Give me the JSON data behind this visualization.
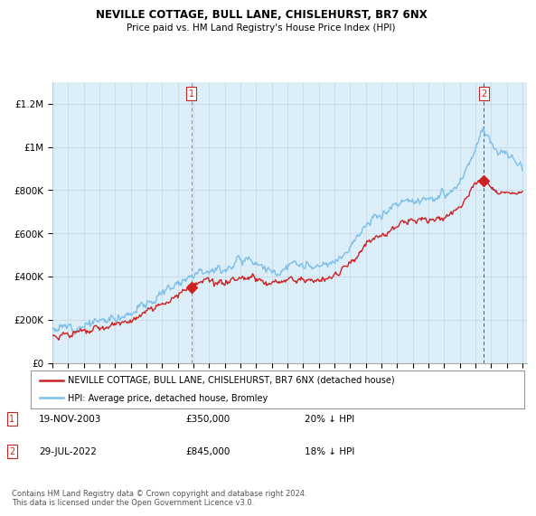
{
  "title": "NEVILLE COTTAGE, BULL LANE, CHISLEHURST, BR7 6NX",
  "subtitle": "Price paid vs. HM Land Registry's House Price Index (HPI)",
  "ylim": [
    0,
    1300000
  ],
  "yticks": [
    0,
    200000,
    400000,
    600000,
    800000,
    1000000,
    1200000
  ],
  "ytick_labels": [
    "£0",
    "£200K",
    "£400K",
    "£600K",
    "£800K",
    "£1M",
    "£1.2M"
  ],
  "hpi_color": "#7bbfea",
  "hpi_fill": "#dceef8",
  "price_color": "#cc2222",
  "sale1_date": "19-NOV-2003",
  "sale1_price": 350000,
  "sale1_pct": "20% ↓ HPI",
  "sale2_date": "29-JUL-2022",
  "sale2_price": 845000,
  "sale2_pct": "18% ↓ HPI",
  "legend_line1": "NEVILLE COTTAGE, BULL LANE, CHISLEHURST, BR7 6NX (detached house)",
  "legend_line2": "HPI: Average price, detached house, Bromley",
  "footer": "Contains HM Land Registry data © Crown copyright and database right 2024.\nThis data is licensed under the Open Government Licence v3.0.",
  "background_color": "#ffffff",
  "grid_color": "#c8d8e8",
  "chart_bg": "#dceef8",
  "hpi_base_points": [
    [
      1995.0,
      160000
    ],
    [
      1995.5,
      162000
    ],
    [
      1996.0,
      168000
    ],
    [
      1996.5,
      172000
    ],
    [
      1997.0,
      178000
    ],
    [
      1997.5,
      185000
    ],
    [
      1998.0,
      192000
    ],
    [
      1998.5,
      198000
    ],
    [
      1999.0,
      210000
    ],
    [
      1999.5,
      222000
    ],
    [
      2000.0,
      238000
    ],
    [
      2000.5,
      255000
    ],
    [
      2001.0,
      272000
    ],
    [
      2001.5,
      295000
    ],
    [
      2002.0,
      322000
    ],
    [
      2002.5,
      352000
    ],
    [
      2003.0,
      375000
    ],
    [
      2003.5,
      395000
    ],
    [
      2004.0,
      415000
    ],
    [
      2004.5,
      435000
    ],
    [
      2005.0,
      435000
    ],
    [
      2005.5,
      428000
    ],
    [
      2006.0,
      438000
    ],
    [
      2006.5,
      455000
    ],
    [
      2007.0,
      478000
    ],
    [
      2007.5,
      490000
    ],
    [
      2008.0,
      472000
    ],
    [
      2008.5,
      445000
    ],
    [
      2009.0,
      415000
    ],
    [
      2009.5,
      420000
    ],
    [
      2010.0,
      445000
    ],
    [
      2010.5,
      452000
    ],
    [
      2011.0,
      448000
    ],
    [
      2011.5,
      440000
    ],
    [
      2012.0,
      438000
    ],
    [
      2012.5,
      445000
    ],
    [
      2013.0,
      465000
    ],
    [
      2013.5,
      498000
    ],
    [
      2014.0,
      548000
    ],
    [
      2014.5,
      590000
    ],
    [
      2015.0,
      630000
    ],
    [
      2015.5,
      660000
    ],
    [
      2016.0,
      690000
    ],
    [
      2016.5,
      715000
    ],
    [
      2017.0,
      735000
    ],
    [
      2017.5,
      748000
    ],
    [
      2018.0,
      755000
    ],
    [
      2018.5,
      758000
    ],
    [
      2019.0,
      760000
    ],
    [
      2019.5,
      762000
    ],
    [
      2020.0,
      768000
    ],
    [
      2020.5,
      790000
    ],
    [
      2021.0,
      835000
    ],
    [
      2021.5,
      900000
    ],
    [
      2022.0,
      980000
    ],
    [
      2022.3,
      1050000
    ],
    [
      2022.5,
      1090000
    ],
    [
      2022.7,
      1080000
    ],
    [
      2023.0,
      1020000
    ],
    [
      2023.5,
      980000
    ],
    [
      2024.0,
      960000
    ],
    [
      2024.5,
      940000
    ],
    [
      2025.0,
      920000
    ]
  ],
  "price_base_points": [
    [
      1995.0,
      128000
    ],
    [
      1995.5,
      130000
    ],
    [
      1996.0,
      135000
    ],
    [
      1996.5,
      138000
    ],
    [
      1997.0,
      143000
    ],
    [
      1997.5,
      150000
    ],
    [
      1998.0,
      158000
    ],
    [
      1998.5,
      165000
    ],
    [
      1999.0,
      175000
    ],
    [
      1999.5,
      185000
    ],
    [
      2000.0,
      198000
    ],
    [
      2000.5,
      215000
    ],
    [
      2001.0,
      228000
    ],
    [
      2001.5,
      248000
    ],
    [
      2002.0,
      272000
    ],
    [
      2002.5,
      300000
    ],
    [
      2003.0,
      318000
    ],
    [
      2003.5,
      335000
    ],
    [
      2003.83,
      350000
    ],
    [
      2004.0,
      355000
    ],
    [
      2004.3,
      360000
    ],
    [
      2004.5,
      368000
    ],
    [
      2004.7,
      375000
    ],
    [
      2005.0,
      372000
    ],
    [
      2005.5,
      365000
    ],
    [
      2006.0,
      368000
    ],
    [
      2006.5,
      378000
    ],
    [
      2007.0,
      390000
    ],
    [
      2007.5,
      398000
    ],
    [
      2008.0,
      388000
    ],
    [
      2008.5,
      375000
    ],
    [
      2009.0,
      360000
    ],
    [
      2009.5,
      370000
    ],
    [
      2010.0,
      382000
    ],
    [
      2010.5,
      390000
    ],
    [
      2011.0,
      388000
    ],
    [
      2011.5,
      382000
    ],
    [
      2012.0,
      380000
    ],
    [
      2012.5,
      390000
    ],
    [
      2013.0,
      408000
    ],
    [
      2013.5,
      432000
    ],
    [
      2014.0,
      470000
    ],
    [
      2014.5,
      505000
    ],
    [
      2015.0,
      542000
    ],
    [
      2015.5,
      572000
    ],
    [
      2016.0,
      595000
    ],
    [
      2016.5,
      618000
    ],
    [
      2017.0,
      635000
    ],
    [
      2017.5,
      648000
    ],
    [
      2018.0,
      655000
    ],
    [
      2018.5,
      658000
    ],
    [
      2019.0,
      660000
    ],
    [
      2019.5,
      662000
    ],
    [
      2020.0,
      668000
    ],
    [
      2020.5,
      688000
    ],
    [
      2021.0,
      725000
    ],
    [
      2021.5,
      780000
    ],
    [
      2022.0,
      830000
    ],
    [
      2022.5,
      845000
    ],
    [
      2023.0,
      820000
    ],
    [
      2023.5,
      800000
    ],
    [
      2024.0,
      790000
    ],
    [
      2024.5,
      785000
    ],
    [
      2025.0,
      780000
    ]
  ]
}
